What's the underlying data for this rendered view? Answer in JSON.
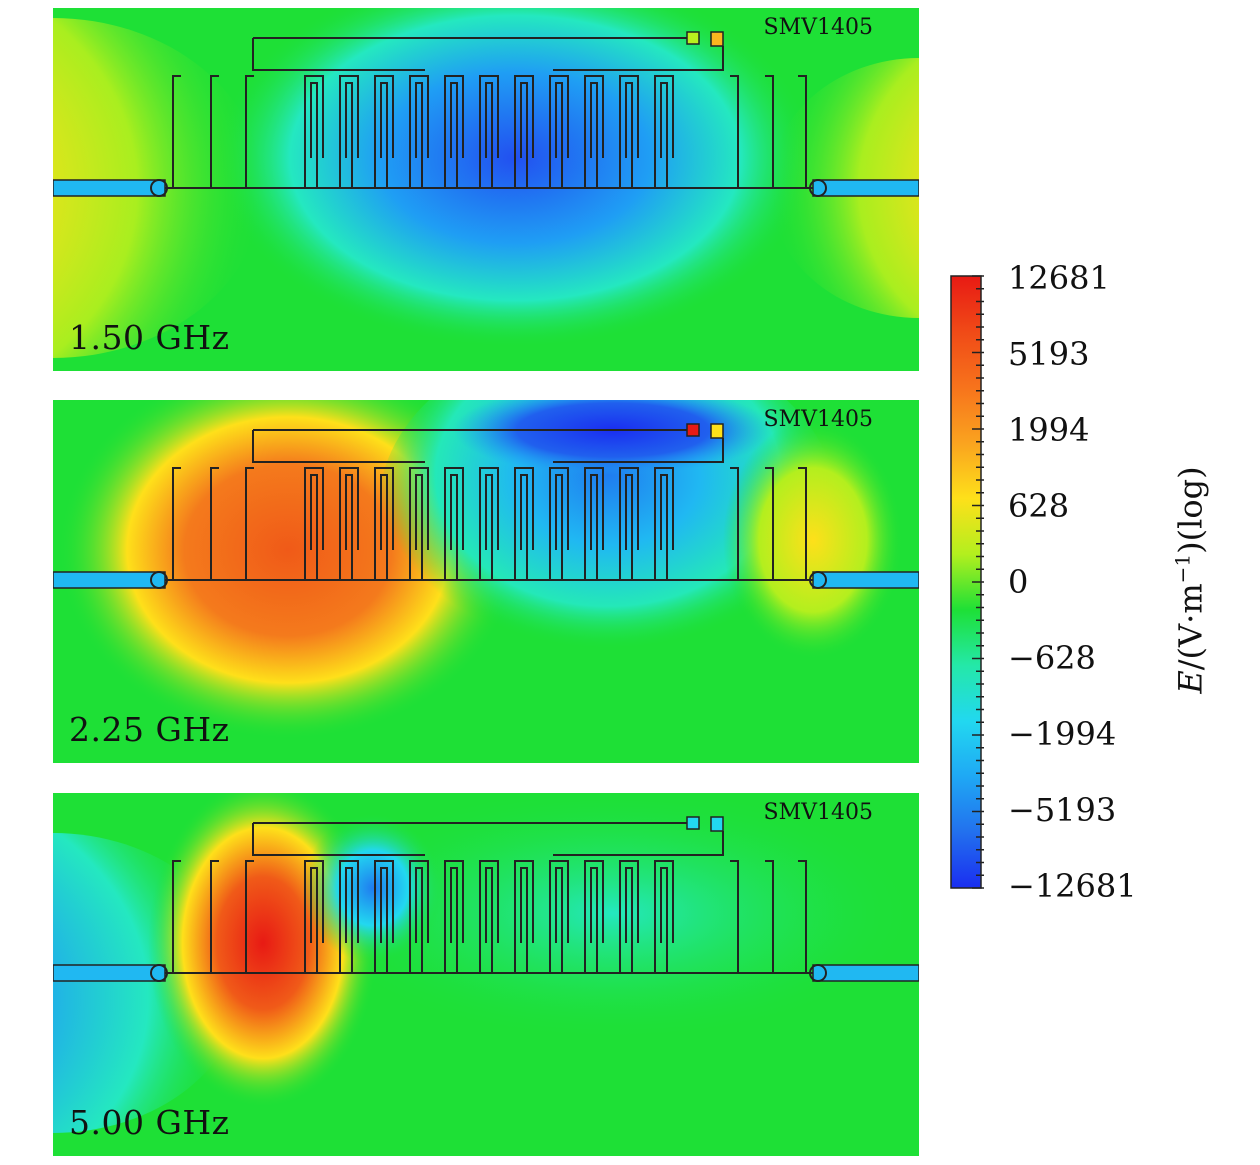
{
  "panels": [
    {
      "frequency": "1.50 GHz",
      "device": "SMV1405"
    },
    {
      "frequency": "2.25 GHz",
      "device": "SMV1405"
    },
    {
      "frequency": "5.00 GHz",
      "device": "SMV1405"
    }
  ],
  "colorbar": {
    "title_symbol": "E",
    "title_rest": "/(V·m",
    "title_exp": "−1",
    "title_tail": ")(log)",
    "ticks": [
      "12681",
      "5193",
      "1994",
      "628",
      "0",
      "−628",
      "−1994",
      "−5193",
      "−12681"
    ],
    "colors": [
      "#e81a14",
      "#f04a17",
      "#f7731c",
      "#faa31f",
      "#fee01a",
      "#b3ef1e",
      "#1ee036",
      "#24e8a8",
      "#22d8f0",
      "#1fa8f4",
      "#2270ee",
      "#1a2ef0"
    ]
  },
  "colors": {
    "background_field": "#1ee036",
    "metal_trace": "#222222"
  }
}
